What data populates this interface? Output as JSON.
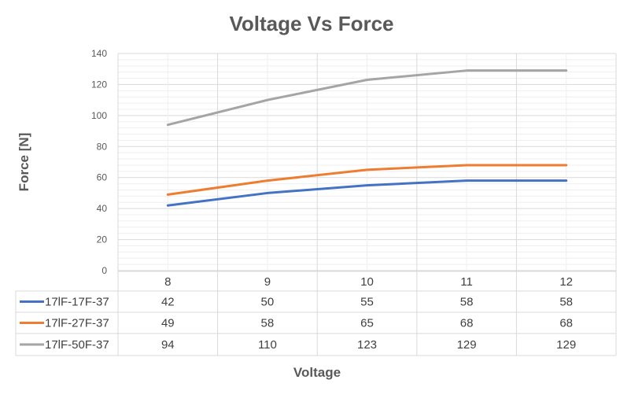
{
  "chart_data": {
    "type": "line",
    "title": "Voltage Vs Force",
    "xlabel": "Voltage",
    "ylabel": "Force [N]",
    "categories": [
      "8",
      "9",
      "10",
      "11",
      "12"
    ],
    "ylim": [
      0,
      140
    ],
    "yticks": [
      "0",
      "20",
      "40",
      "60",
      "80",
      "100",
      "120",
      "140"
    ],
    "grid": {
      "major": true,
      "minor": true
    },
    "legend": "data-table",
    "series": [
      {
        "name": "17lF-17F-37",
        "color": "#4472C4",
        "values": [
          42,
          50,
          55,
          58,
          58
        ]
      },
      {
        "name": "17lF-27F-37",
        "color": "#ED7D31",
        "values": [
          49,
          58,
          65,
          68,
          68
        ]
      },
      {
        "name": "17lF-50F-37",
        "color": "#A5A5A5",
        "values": [
          94,
          110,
          123,
          129,
          129
        ]
      }
    ]
  }
}
